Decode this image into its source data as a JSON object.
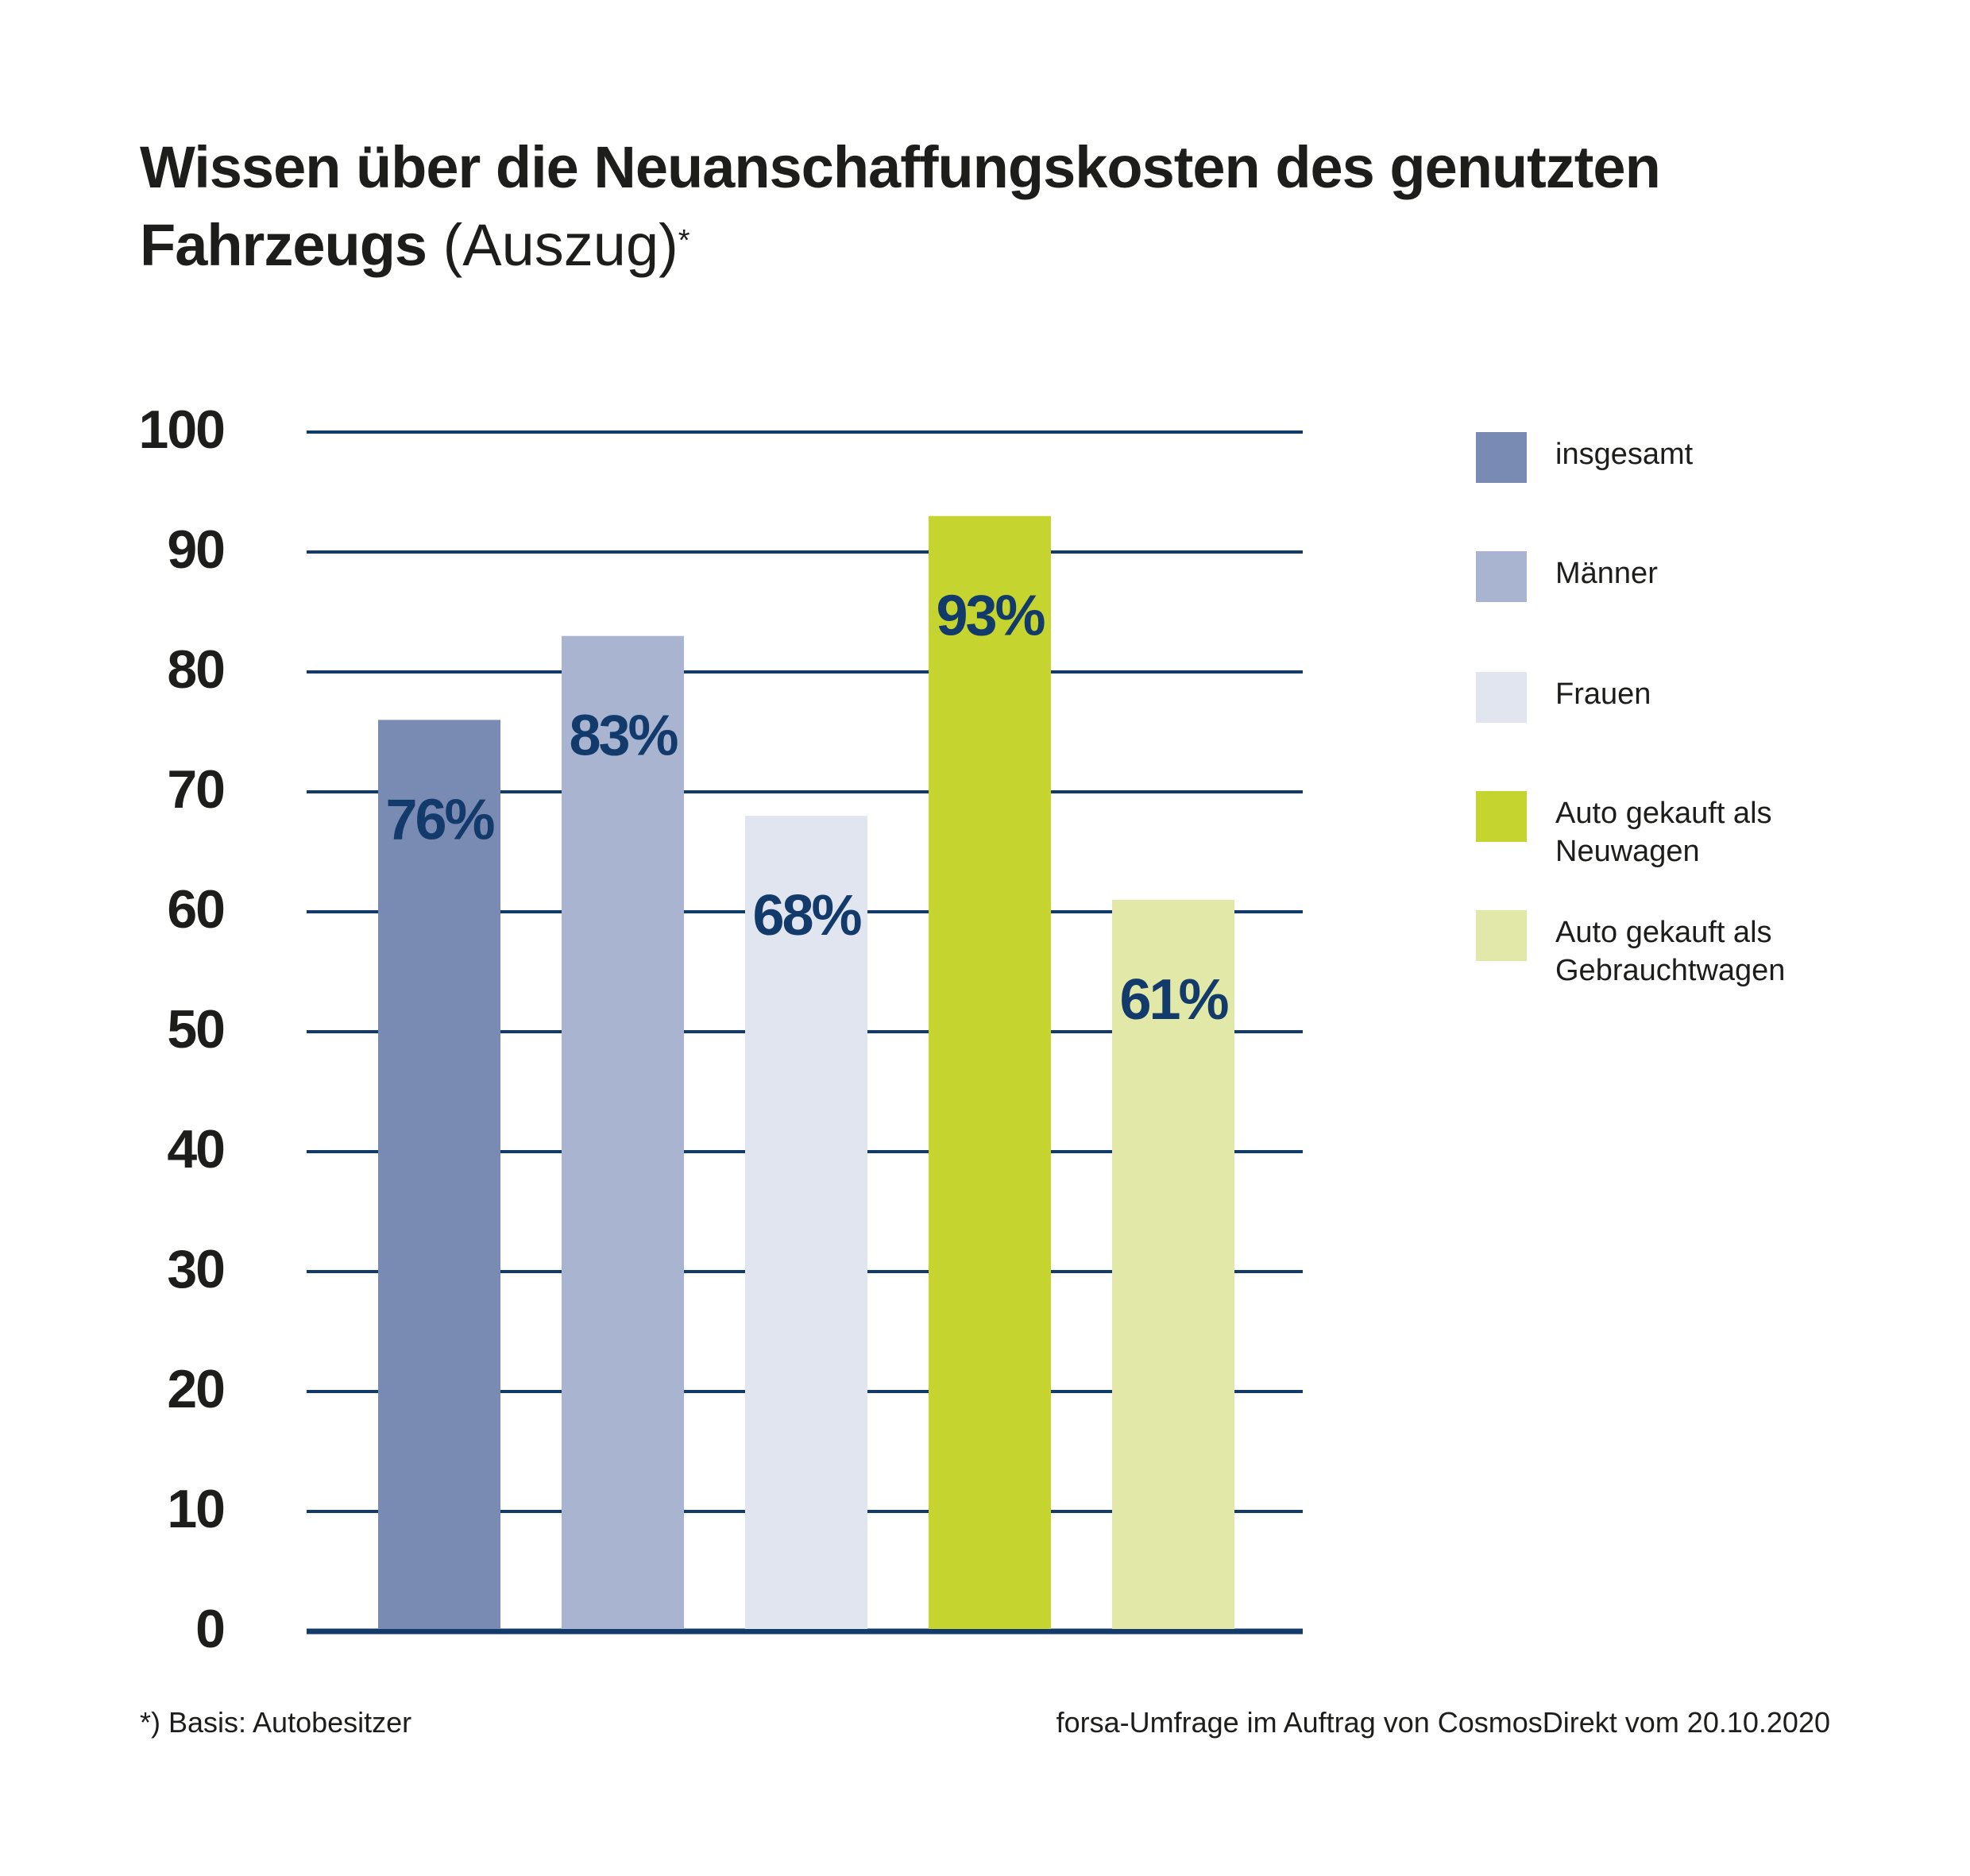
{
  "title": {
    "bold": "Wissen über die Neuanschaffungskosten des genutzten Fahrzeugs",
    "light": "(Auszug)",
    "marker": "*"
  },
  "chart_data": {
    "type": "bar",
    "title": "Wissen über die Neuanschaffungskosten des genutzten Fahrzeugs (Auszug)*",
    "categories": [
      "insgesamt",
      "Männer",
      "Frauen",
      "Auto gekauft als Neuwagen",
      "Auto gekauft als Gebrauchtwagen"
    ],
    "values": [
      76,
      83,
      68,
      93,
      61
    ],
    "data_labels": [
      "76%",
      "83%",
      "68%",
      "93%",
      "61%"
    ],
    "colors": [
      "#798bb2",
      "#a9b4d0",
      "#e0e5ef",
      "#c5d42e",
      "#e2e8a7"
    ],
    "ylim": [
      0,
      100
    ],
    "yticks": [
      0,
      10,
      20,
      30,
      40,
      50,
      60,
      70,
      80,
      90,
      100
    ],
    "grid": true,
    "legend_position": "right",
    "legend": [
      {
        "label": [
          "insgesamt"
        ],
        "color": "#798bb2"
      },
      {
        "label": [
          "Männer"
        ],
        "color": "#a9b4d0"
      },
      {
        "label": [
          "Frauen"
        ],
        "color": "#e0e5ef"
      },
      {
        "label": [
          "Auto gekauft als",
          "Neuwagen"
        ],
        "color": "#c5d42e"
      },
      {
        "label": [
          "Auto gekauft als",
          "Gebrauchtwagen"
        ],
        "color": "#e2e8a7"
      }
    ],
    "grid_color": "#123a6b",
    "label_color": "#123a6b"
  },
  "footnote": "*) Basis: Autobesitzer",
  "source": "forsa-Umfrage im Auftrag von CosmosDirekt vom 20.10.2020"
}
